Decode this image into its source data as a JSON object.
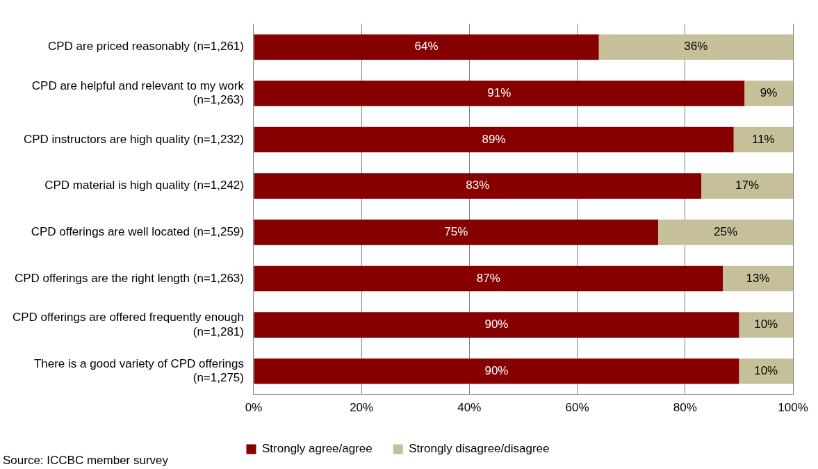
{
  "chart_data": {
    "type": "bar",
    "orientation": "horizontal",
    "stacked": true,
    "categories": [
      "CPD are priced reasonably (n=1,261)",
      "CPD are helpful and relevant to my work (n=1,263)",
      "CPD instructors are high quality (n=1,232)",
      "CPD material is high quality (n=1,242)",
      "CPD offerings are well located (n=1,259)",
      "CPD offerings are the right length (n=1,263)",
      "CPD offerings are offered frequently enough (n=1,281)",
      "There is a good variety of CPD offerings (n=1,275)"
    ],
    "series": [
      {
        "name": "Strongly agree/agree",
        "color": "#860000",
        "values": [
          64,
          91,
          89,
          83,
          75,
          87,
          90,
          90
        ],
        "value_labels": [
          "64%",
          "91%",
          "89%",
          "83%",
          "75%",
          "87%",
          "90%",
          "90%"
        ]
      },
      {
        "name": "Strongly disagree/disagree",
        "color": "#c6c09a",
        "values": [
          36,
          9,
          11,
          17,
          25,
          13,
          10,
          10
        ],
        "value_labels": [
          "36%",
          "9%",
          "11%",
          "17%",
          "25%",
          "13%",
          "10%",
          "10%"
        ]
      }
    ],
    "xlim": [
      0,
      100
    ],
    "xticks": [
      {
        "value": 0,
        "label": "0%"
      },
      {
        "value": 20,
        "label": "20%"
      },
      {
        "value": 40,
        "label": "40%"
      },
      {
        "value": 60,
        "label": "60%"
      },
      {
        "value": 80,
        "label": "80%"
      },
      {
        "value": 100,
        "label": "100%"
      }
    ],
    "grid": "x",
    "legend": "bottom",
    "annotations": [
      "Source: ICCBC member survey"
    ]
  }
}
